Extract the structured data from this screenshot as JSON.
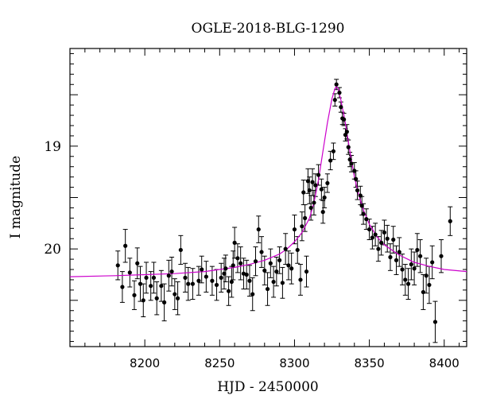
{
  "chart_data": {
    "type": "scatter",
    "title": "OGLE-2018-BLG-1290",
    "xlabel": "HJD - 2450000",
    "ylabel": "I magnitude",
    "xlim": [
      8150,
      8415
    ],
    "ylim": [
      20.95,
      18.05
    ],
    "y_inverted": true,
    "x_ticks": [
      8200,
      8250,
      8300,
      8350,
      8400
    ],
    "y_ticks": [
      19,
      20
    ],
    "grid": false,
    "colors": {
      "points": "#000000",
      "model": "#cc00cc",
      "axes": "#000000"
    },
    "series": [
      {
        "type": "errorbar",
        "x": [
          8182,
          8185,
          8187,
          8190,
          8193,
          8195,
          8197,
          8199,
          8201,
          8204,
          8206,
          8208,
          8211,
          8213,
          8216,
          8218,
          8220,
          8222,
          8224,
          8227,
          8229,
          8232,
          8236,
          8238,
          8241,
          8245,
          8248,
          8251,
          8253,
          8254,
          8256,
          8258,
          8259,
          8260,
          8262,
          8264,
          8266,
          8268,
          8270,
          8272,
          8274,
          8276,
          8278,
          8280,
          8282,
          8284,
          8286,
          8288,
          8290,
          8292,
          8294,
          8296,
          8298,
          8300,
          8302,
          8304,
          8305,
          8306,
          8307,
          8308,
          8309,
          8310,
          8311,
          8312,
          8313,
          8314,
          8316,
          8318,
          8319,
          8320,
          8322,
          8324,
          8326,
          8327,
          8328,
          8330,
          8331,
          8332,
          8333,
          8334,
          8335,
          8336,
          8337,
          8338,
          8340,
          8341,
          8342,
          8344,
          8345,
          8346,
          8348,
          8350,
          8352,
          8354,
          8356,
          8358,
          8360,
          8362,
          8364,
          8366,
          8368,
          8370,
          8372,
          8374,
          8376,
          8378,
          8380,
          8382,
          8384,
          8386,
          8388,
          8390,
          8392,
          8394,
          8398,
          8404
        ],
        "y": [
          20.16,
          20.37,
          19.97,
          20.23,
          20.45,
          20.14,
          20.34,
          20.5,
          20.28,
          20.36,
          20.28,
          20.48,
          20.36,
          20.52,
          20.26,
          20.22,
          20.44,
          20.48,
          20.01,
          20.28,
          20.34,
          20.34,
          20.31,
          20.2,
          20.27,
          20.31,
          20.35,
          20.28,
          20.24,
          20.19,
          20.41,
          20.32,
          20.16,
          19.94,
          20.09,
          20.14,
          20.24,
          20.25,
          20.31,
          20.44,
          20.12,
          19.81,
          20.03,
          20.21,
          20.39,
          20.14,
          20.32,
          20.22,
          20.11,
          20.33,
          20.0,
          20.16,
          20.19,
          19.81,
          20.01,
          20.3,
          19.78,
          19.45,
          19.7,
          20.22,
          19.34,
          19.43,
          19.6,
          19.35,
          19.55,
          19.38,
          19.28,
          19.42,
          19.64,
          19.5,
          19.36,
          19.14,
          19.05,
          18.55,
          18.4,
          18.48,
          18.62,
          18.73,
          18.74,
          18.89,
          18.86,
          19.01,
          19.13,
          19.17,
          19.24,
          19.32,
          19.43,
          19.48,
          19.58,
          19.66,
          19.71,
          19.81,
          19.89,
          19.86,
          20.0,
          19.94,
          19.84,
          19.9,
          20.08,
          19.91,
          20.11,
          20.03,
          20.2,
          20.3,
          20.34,
          20.15,
          20.19,
          20.01,
          20.07,
          20.42,
          20.26,
          20.35,
          20.13,
          20.71,
          20.07,
          19.73
        ],
        "err": [
          0.14,
          0.15,
          0.16,
          0.14,
          0.14,
          0.15,
          0.17,
          0.16,
          0.15,
          0.14,
          0.15,
          0.16,
          0.15,
          0.18,
          0.15,
          0.14,
          0.15,
          0.16,
          0.14,
          0.14,
          0.16,
          0.15,
          0.14,
          0.13,
          0.15,
          0.14,
          0.15,
          0.14,
          0.15,
          0.13,
          0.14,
          0.15,
          0.14,
          0.15,
          0.14,
          0.16,
          0.15,
          0.14,
          0.15,
          0.16,
          0.14,
          0.13,
          0.15,
          0.14,
          0.16,
          0.14,
          0.15,
          0.14,
          0.13,
          0.15,
          0.15,
          0.14,
          0.15,
          0.14,
          0.13,
          0.15,
          0.14,
          0.12,
          0.13,
          0.15,
          0.12,
          0.13,
          0.12,
          0.13,
          0.12,
          0.11,
          0.1,
          0.1,
          0.11,
          0.1,
          0.09,
          0.09,
          0.08,
          0.06,
          0.05,
          0.05,
          0.05,
          0.06,
          0.06,
          0.06,
          0.07,
          0.07,
          0.07,
          0.08,
          0.08,
          0.08,
          0.09,
          0.09,
          0.09,
          0.1,
          0.1,
          0.1,
          0.11,
          0.11,
          0.12,
          0.12,
          0.12,
          0.13,
          0.13,
          0.13,
          0.14,
          0.14,
          0.15,
          0.15,
          0.15,
          0.15,
          0.16,
          0.16,
          0.16,
          0.17,
          0.17,
          0.18,
          0.16,
          0.2,
          0.16,
          0.14
        ]
      },
      {
        "type": "line",
        "x": [
          8150,
          8180,
          8200,
          8220,
          8240,
          8250,
          8260,
          8270,
          8280,
          8290,
          8295,
          8300,
          8305,
          8310,
          8313,
          8316,
          8319,
          8322,
          8325,
          8327,
          8328,
          8329,
          8331,
          8334,
          8337,
          8340,
          8343,
          8346,
          8350,
          8355,
          8360,
          8370,
          8380,
          8390,
          8400,
          8415
        ],
        "y": [
          20.27,
          20.26,
          20.25,
          20.24,
          20.22,
          20.2,
          20.18,
          20.15,
          20.11,
          20.05,
          20.0,
          19.93,
          19.84,
          19.7,
          19.55,
          19.33,
          19.05,
          18.77,
          18.54,
          18.44,
          18.42,
          18.44,
          18.55,
          18.78,
          19.05,
          19.3,
          19.48,
          19.62,
          19.76,
          19.88,
          19.96,
          20.06,
          20.13,
          20.17,
          20.2,
          20.22
        ]
      }
    ]
  }
}
